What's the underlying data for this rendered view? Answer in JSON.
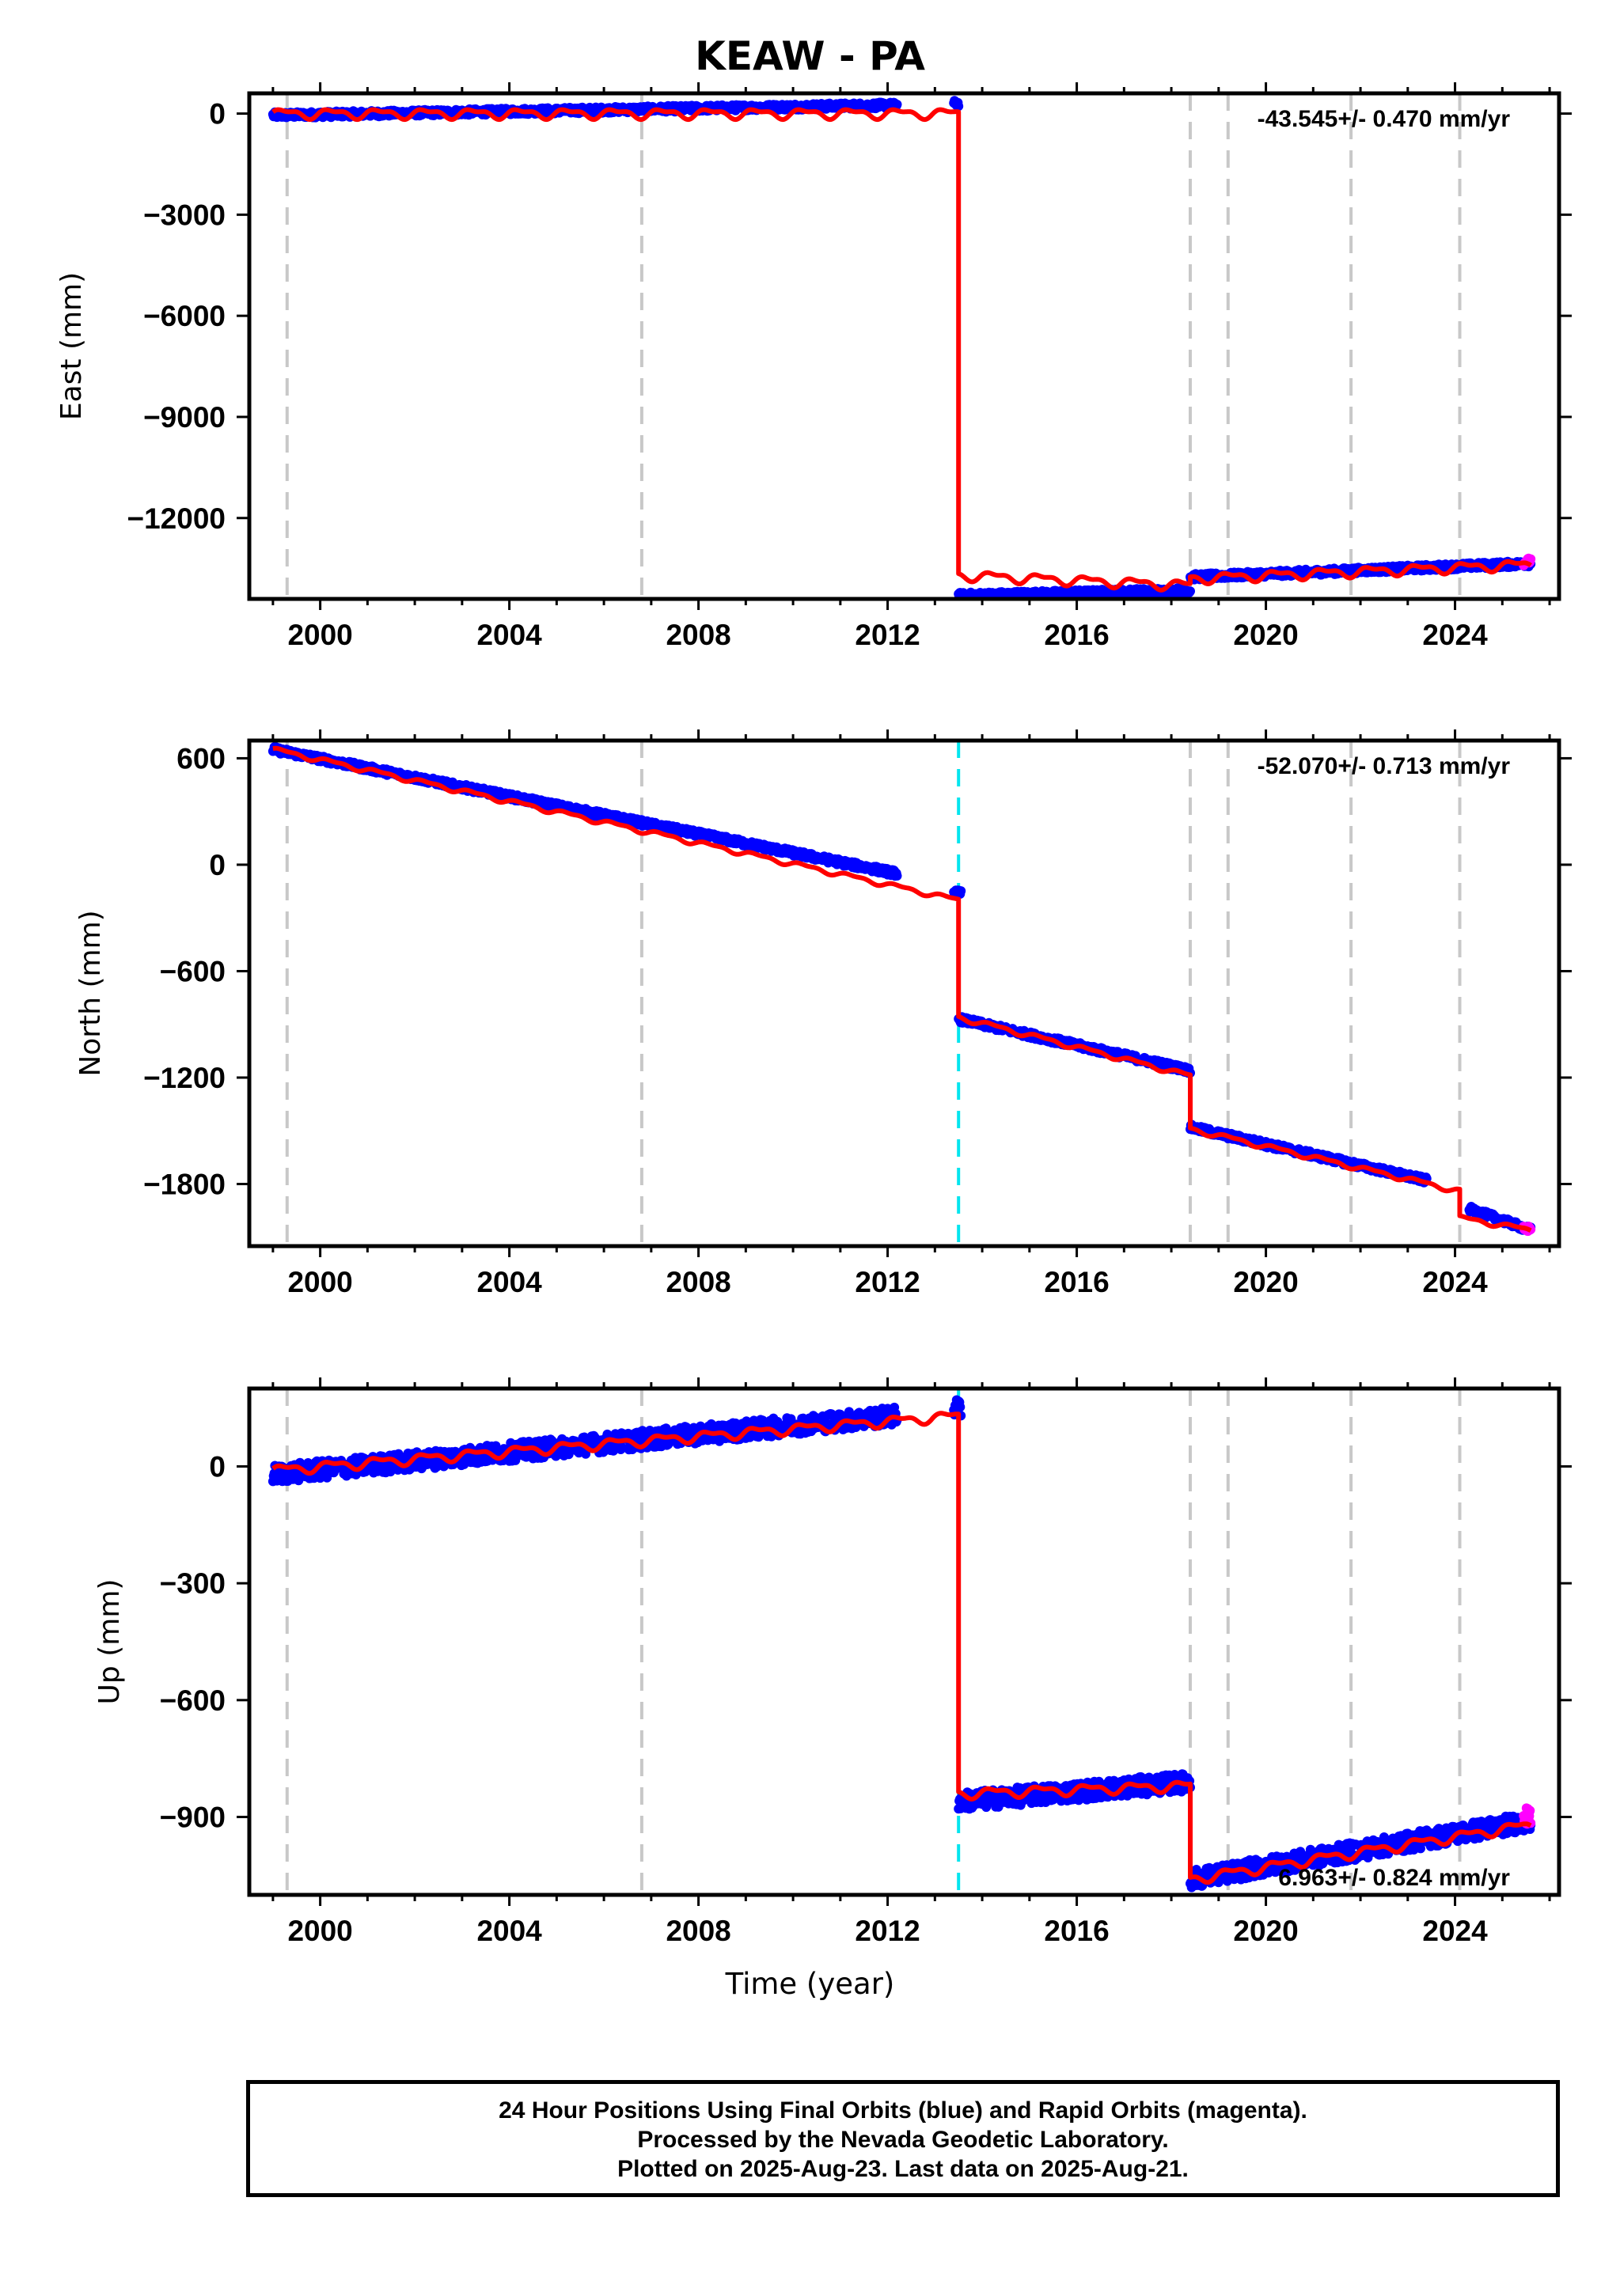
{
  "title": "KEAW - PA",
  "xlabel": "Time (year)",
  "footer": {
    "line1": "24 Hour Positions Using Final Orbits (blue) and Rapid Orbits (magenta).",
    "line2": "Processed by the Nevada Geodetic Laboratory.",
    "line3": "Plotted on 2025-Aug-23. Last data on 2025-Aug-21."
  },
  "colors": {
    "final_orbits": "#0000ff",
    "rapid_orbits": "#ff00ff",
    "model": "#ff0000",
    "offset_equipment": "#c8c8c8",
    "offset_earthquake": "#00e5ee"
  },
  "chart_data": [
    {
      "type": "scatter",
      "component": "east",
      "ylabel": "East (mm)",
      "rate": "-43.545+/- 0.470 mm/yr",
      "xlim": [
        1998.5,
        2026.2
      ],
      "ylim": [
        -14400,
        600
      ],
      "xticks": [
        2000,
        2004,
        2008,
        2012,
        2016,
        2020,
        2024
      ],
      "xtick_labels": [
        "2000",
        "2004",
        "2008",
        "2012",
        "2016",
        "2020",
        "2024"
      ],
      "yticks": [
        0,
        -3000,
        -6000,
        -9000,
        -12000
      ],
      "ytick_labels": [
        "0",
        "−3000",
        "−6000",
        "−9000",
        "−12000"
      ],
      "grid": false,
      "equipment_offsets": [
        1999.3,
        2006.8,
        2018.4,
        2019.2,
        2021.8,
        2024.1
      ],
      "earthquake_offsets": [],
      "series": [
        {
          "name": "Final Orbits",
          "segments": [
            {
              "x": [
                1999.0,
                2012.2
              ],
              "y": [
                -50,
                250
              ]
            },
            {
              "x": [
                2013.4,
                2013.5
              ],
              "y": [
                300,
                300
              ]
            },
            {
              "x": [
                2013.5,
                2018.4
              ],
              "y": [
                -14300,
                -14150
              ]
            },
            {
              "x": [
                2018.4,
                2025.6
              ],
              "y": [
                -13750,
                -13350
              ]
            }
          ]
        },
        {
          "name": "Rapid Orbits",
          "segments": [
            {
              "x": [
                2025.45,
                2025.6
              ],
              "y": [
                -13320,
                -13260
              ]
            }
          ]
        }
      ],
      "model": [
        {
          "x": [
            1999.0,
            2013.5
          ],
          "y": [
            0,
            0
          ]
        },
        {
          "x": [
            2013.5,
            2018.4
          ],
          "y": [
            -13700,
            -14000
          ]
        },
        {
          "x": [
            2018.4,
            2025.6
          ],
          "y": [
            -13800,
            -13380
          ]
        }
      ]
    },
    {
      "type": "scatter",
      "component": "north",
      "ylabel": "North (mm)",
      "rate": "-52.070+/- 0.713 mm/yr",
      "xlim": [
        1998.5,
        2026.2
      ],
      "ylim": [
        -2150,
        700
      ],
      "xticks": [
        2000,
        2004,
        2008,
        2012,
        2016,
        2020,
        2024
      ],
      "xtick_labels": [
        "2000",
        "2004",
        "2008",
        "2012",
        "2016",
        "2020",
        "2024"
      ],
      "yticks": [
        600,
        0,
        -600,
        -1200,
        -1800
      ],
      "ytick_labels": [
        "600",
        "0",
        "−600",
        "−1200",
        "−1800"
      ],
      "grid": false,
      "equipment_offsets": [
        1999.3,
        2006.8,
        2018.4,
        2019.2,
        2021.8,
        2024.1
      ],
      "earthquake_offsets": [
        2013.5
      ],
      "series": [
        {
          "name": "Final Orbits",
          "segments": [
            {
              "x": [
                1999.0,
                2012.2
              ],
              "y": [
                650,
                -50
              ]
            },
            {
              "x": [
                2013.4,
                2013.55
              ],
              "y": [
                -160,
                -160
              ]
            },
            {
              "x": [
                2013.5,
                2018.4
              ],
              "y": [
                -870,
                -1160
              ]
            },
            {
              "x": [
                2018.4,
                2023.4
              ],
              "y": [
                -1480,
                -1780
              ]
            },
            {
              "x": [
                2024.3,
                2025.6
              ],
              "y": [
                -1940,
                -2060
              ]
            }
          ]
        },
        {
          "name": "Rapid Orbits",
          "segments": [
            {
              "x": [
                2025.45,
                2025.6
              ],
              "y": [
                -2050,
                -2055
              ]
            }
          ]
        }
      ],
      "model": [
        {
          "x": [
            1999.0,
            2013.5
          ],
          "y": [
            650,
            -200
          ]
        },
        {
          "x": [
            2013.5,
            2018.4
          ],
          "y": [
            -860,
            -1190
          ]
        },
        {
          "x": [
            2018.4,
            2024.1
          ],
          "y": [
            -1490,
            -1840
          ]
        },
        {
          "x": [
            2024.1,
            2025.6
          ],
          "y": [
            -1990,
            -2060
          ]
        }
      ]
    },
    {
      "type": "scatter",
      "component": "up",
      "ylabel": "Up (mm)",
      "rate": "6.963+/- 0.824 mm/yr",
      "xlim": [
        1998.5,
        2026.2
      ],
      "ylim": [
        -1100,
        200
      ],
      "xticks": [
        2000,
        2004,
        2008,
        2012,
        2016,
        2020,
        2024
      ],
      "xtick_labels": [
        "2000",
        "2004",
        "2008",
        "2012",
        "2016",
        "2020",
        "2024"
      ],
      "yticks": [
        0,
        -300,
        -600,
        -900
      ],
      "ytick_labels": [
        "0",
        "−300",
        "−600",
        "−900"
      ],
      "grid": false,
      "equipment_offsets": [
        1999.3,
        2006.8,
        2018.4,
        2019.2,
        2021.8,
        2024.1
      ],
      "earthquake_offsets": [
        2013.5
      ],
      "series": [
        {
          "name": "Final Orbits",
          "segments": [
            {
              "x": [
                1999.0,
                2012.2
              ],
              "y": [
                -20,
                130
              ]
            },
            {
              "x": [
                2013.4,
                2013.55
              ],
              "y": [
                150,
                150
              ]
            },
            {
              "x": [
                2013.5,
                2018.4
              ],
              "y": [
                -860,
                -810
              ]
            },
            {
              "x": [
                2018.4,
                2025.6
              ],
              "y": [
                -1060,
                -910
              ]
            }
          ]
        },
        {
          "name": "Rapid Orbits",
          "segments": [
            {
              "x": [
                2025.45,
                2025.6
              ],
              "y": [
                -900,
                -900
              ]
            }
          ]
        }
      ],
      "model": [
        {
          "x": [
            1999.0,
            2013.5
          ],
          "y": [
            -10,
            130
          ]
        },
        {
          "x": [
            2013.5,
            2018.4
          ],
          "y": [
            -840,
            -820
          ]
        },
        {
          "x": [
            2018.4,
            2025.6
          ],
          "y": [
            -1060,
            -920
          ]
        }
      ]
    }
  ]
}
